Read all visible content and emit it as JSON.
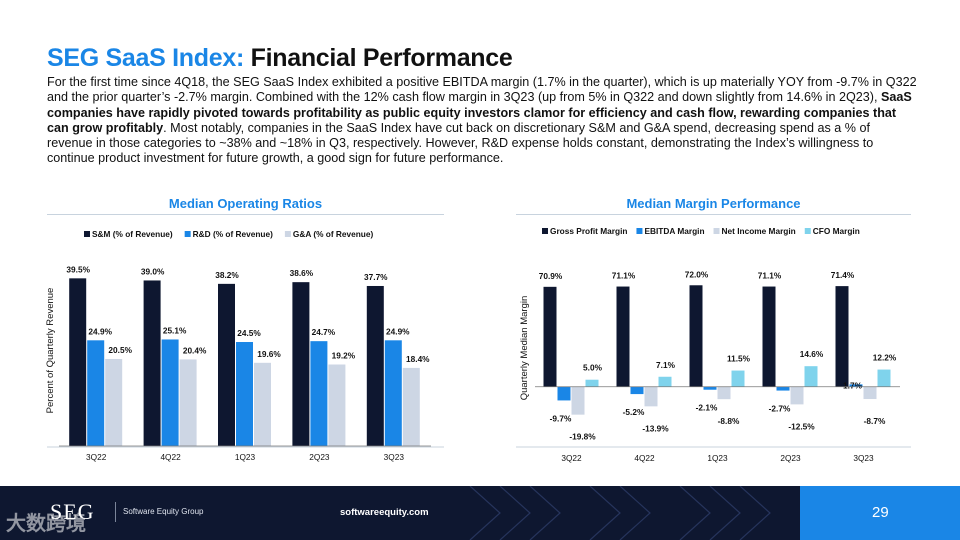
{
  "header": {
    "title_prefix": "SEG SaaS Index:",
    "title_rest": "Financial Performance"
  },
  "intro": {
    "part1": "For the first time since 4Q18, the SEG SaaS Index exhibited a positive EBITDA margin (1.7% in the quarter), which is up materially YOY from -9.7% in Q322 and the prior quarter’s -2.7% margin. Combined with the 12% cash flow margin in 3Q23 (up from 5% in Q322 and down slightly from 14.6% in 2Q23), ",
    "bold": "SaaS companies have rapidly pivoted towards profitability as public equity investors clamor for efficiency and cash flow, rewarding companies that can grow profitably",
    "part2": ". Most notably, companies in the SaaS Index have cut back on discretionary S&M and G&A spend, decreasing spend as a % of revenue in those categories to ~38% and ~18% in Q3, respectively. However, R&D expense holds constant, demonstrating the Index’s willingness to continue product investment for future growth, a good sign for future performance."
  },
  "chart_data": [
    {
      "type": "bar",
      "title": "Median Operating Ratios",
      "ylabel": "Percent of Quarterly Revenue",
      "categories": [
        "3Q22",
        "4Q22",
        "1Q23",
        "2Q23",
        "3Q23"
      ],
      "series": [
        {
          "name": "S&M (% of Revenue)",
          "color": "#0e1730",
          "values": [
            39.5,
            39.0,
            38.2,
            38.6,
            37.7
          ],
          "labels": [
            "39.5%",
            "39.0%",
            "38.2%",
            "38.6%",
            "37.7%"
          ]
        },
        {
          "name": "R&D (% of Revenue)",
          "color": "#1a86e6",
          "values": [
            24.9,
            25.1,
            24.5,
            24.7,
            24.9
          ],
          "labels": [
            "24.9%",
            "25.1%",
            "24.5%",
            "24.7%",
            "24.9%"
          ]
        },
        {
          "name": "G&A (% of Revenue)",
          "color": "#cdd6e4",
          "values": [
            20.5,
            20.4,
            19.6,
            19.2,
            18.4
          ],
          "labels": [
            "20.5%",
            "20.4%",
            "19.6%",
            "19.2%",
            "18.4%"
          ]
        }
      ],
      "ylim": [
        0,
        45
      ],
      "grid": false,
      "legend": "top"
    },
    {
      "type": "bar",
      "title": "Median Margin Performance",
      "ylabel": "Quarterly Median Margin",
      "categories": [
        "3Q22",
        "4Q22",
        "1Q23",
        "2Q23",
        "3Q23"
      ],
      "series": [
        {
          "name": "Gross Profit Margin",
          "color": "#0e1730",
          "values": [
            70.9,
            71.1,
            72.0,
            71.1,
            71.4
          ],
          "labels": [
            "70.9%",
            "71.1%",
            "72.0%",
            "71.1%",
            "71.4%"
          ]
        },
        {
          "name": "EBITDA Margin",
          "color": "#1a86e6",
          "values": [
            -9.7,
            -5.2,
            -2.1,
            -2.7,
            1.7
          ],
          "labels": [
            "-9.7%",
            "-5.2%",
            "-2.1%",
            "-2.7%",
            "1.7%"
          ]
        },
        {
          "name": "Net Income Margin",
          "color": "#cdd6e4",
          "values": [
            -19.8,
            -13.9,
            -8.8,
            -12.5,
            -8.7
          ],
          "labels": [
            "-19.8%",
            "-13.9%",
            "-8.8%",
            "-12.5%",
            "-8.7%"
          ]
        },
        {
          "name": "CFO Margin",
          "color": "#7fd3ec",
          "values": [
            5.0,
            7.1,
            11.5,
            14.6,
            12.2
          ],
          "labels": [
            "5.0%",
            "7.1%",
            "11.5%",
            "14.6%",
            "12.2%"
          ]
        }
      ],
      "ylim": [
        -25,
        80
      ],
      "grid": false,
      "legend": "top"
    }
  ],
  "footer": {
    "logo": "SEG",
    "group": "Software Equity Group",
    "url": "softwareequity.com",
    "page": "29",
    "watermark": "大数跨境"
  }
}
